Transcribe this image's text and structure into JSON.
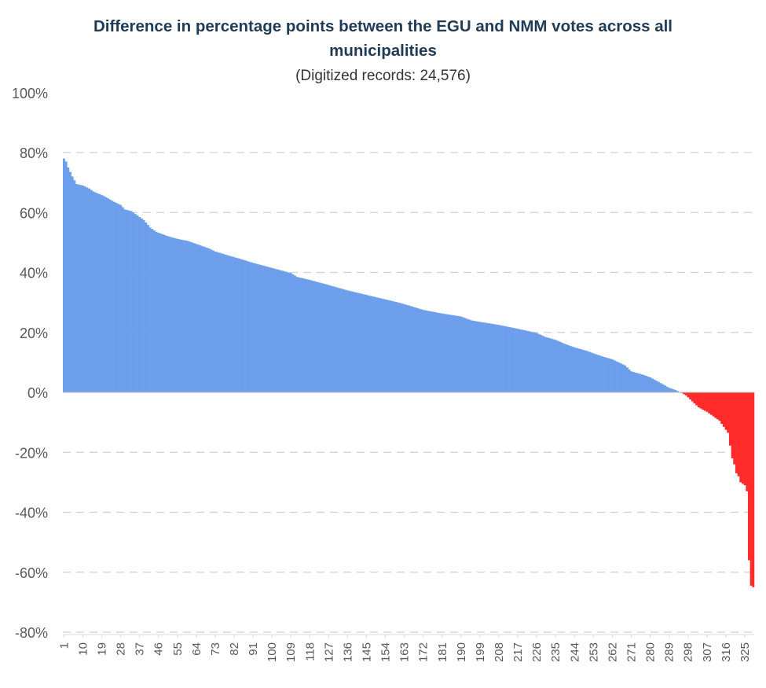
{
  "chart_data": {
    "type": "bar",
    "title_lines": [
      "Difference in percentage points between the EGU and NMM votes across all",
      "municipalities"
    ],
    "subtitle": "(Digitized records: 24,576)",
    "xlabel": "",
    "ylabel": "",
    "ylim": [
      -80,
      100
    ],
    "y_ticks": [
      100,
      80,
      60,
      40,
      20,
      0,
      -20,
      -40,
      -60,
      -80
    ],
    "y_tick_labels": [
      "100%",
      "80%",
      "60%",
      "40%",
      "20%",
      "0%",
      "-20%",
      "-40%",
      "-60%",
      "-80%"
    ],
    "x_tick_labels": [
      "1",
      "10",
      "19",
      "28",
      "37",
      "46",
      "55",
      "64",
      "73",
      "82",
      "91",
      "100",
      "109",
      "118",
      "127",
      "136",
      "145",
      "154",
      "163",
      "172",
      "181",
      "190",
      "199",
      "208",
      "217",
      "226",
      "235",
      "244",
      "253",
      "262",
      "271",
      "280",
      "289",
      "298",
      "307",
      "316",
      "325"
    ],
    "n_bars": 329,
    "grid": true,
    "legend": "none",
    "colors": {
      "positive": "#6d9eeb",
      "negative": "#ff2b2b",
      "grid": "#d0d0d0",
      "axis_text": "#595959"
    },
    "anchor_points": [
      [
        1,
        78
      ],
      [
        2,
        77
      ],
      [
        3,
        75
      ],
      [
        5,
        72
      ],
      [
        7,
        69.5
      ],
      [
        10,
        69
      ],
      [
        13,
        68
      ],
      [
        15,
        67
      ],
      [
        20,
        65.5
      ],
      [
        25,
        63.5
      ],
      [
        28,
        62.5
      ],
      [
        30,
        61
      ],
      [
        33,
        60.5
      ],
      [
        36,
        59
      ],
      [
        39,
        57.5
      ],
      [
        42,
        55
      ],
      [
        45,
        53.5
      ],
      [
        50,
        52.2
      ],
      [
        55,
        51.2
      ],
      [
        60,
        50.5
      ],
      [
        64,
        49.5
      ],
      [
        70,
        48
      ],
      [
        73,
        47
      ],
      [
        80,
        45.5
      ],
      [
        85,
        44.5
      ],
      [
        91,
        43.2
      ],
      [
        100,
        41.5
      ],
      [
        109,
        39.8
      ],
      [
        112,
        38.5
      ],
      [
        118,
        37.5
      ],
      [
        127,
        35.8
      ],
      [
        136,
        34
      ],
      [
        145,
        32.5
      ],
      [
        154,
        31
      ],
      [
        160,
        30
      ],
      [
        165,
        29
      ],
      [
        172,
        27.5
      ],
      [
        181,
        26.3
      ],
      [
        190,
        25.3
      ],
      [
        195,
        24
      ],
      [
        199,
        23.5
      ],
      [
        208,
        22.5
      ],
      [
        217,
        21.2
      ],
      [
        226,
        19.8
      ],
      [
        230,
        18.5
      ],
      [
        235,
        17.5
      ],
      [
        240,
        16
      ],
      [
        244,
        15
      ],
      [
        250,
        13.8
      ],
      [
        253,
        13
      ],
      [
        258,
        11.8
      ],
      [
        262,
        11
      ],
      [
        268,
        9
      ],
      [
        271,
        7
      ],
      [
        276,
        6
      ],
      [
        280,
        5
      ],
      [
        284,
        3.5
      ],
      [
        287,
        2.3
      ],
      [
        289,
        1.5
      ],
      [
        292,
        0.8
      ],
      [
        294,
        0.1
      ],
      [
        295,
        -0.2
      ],
      [
        297,
        -1
      ],
      [
        300,
        -3
      ],
      [
        303,
        -5
      ],
      [
        307,
        -6.5
      ],
      [
        310,
        -8
      ],
      [
        313,
        -9.5
      ],
      [
        315,
        -11.5
      ],
      [
        317,
        -13.5
      ],
      [
        319,
        -22
      ],
      [
        320,
        -24
      ],
      [
        321,
        -27
      ],
      [
        322,
        -28
      ],
      [
        323,
        -30
      ],
      [
        325,
        -31
      ],
      [
        326,
        -33
      ],
      [
        327,
        -56
      ],
      [
        328,
        -64.5
      ],
      [
        329,
        -65
      ]
    ]
  }
}
